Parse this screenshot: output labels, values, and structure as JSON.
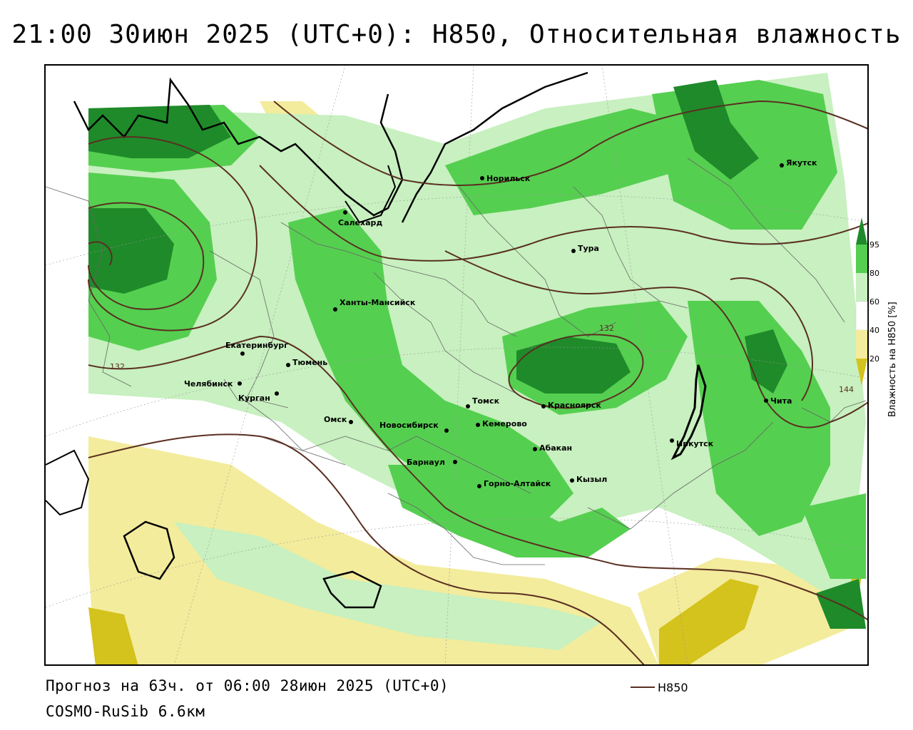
{
  "title": "21:00 30июн 2025 (UTC+0): H850, Относительная влажность",
  "footer": {
    "forecast": "Прогноз на 63ч. от 06:00 28июн 2025 (UTC+0)",
    "model": "COSMO-RuSib 6.6км",
    "line_legend_label": "H850"
  },
  "colorbar": {
    "title": "Влажность на H850 [%]",
    "ticks": [
      "20",
      "40",
      "60",
      "80",
      "95"
    ],
    "colors": {
      "lt20": "#d4c21d",
      "c20_40": "#f3ec9c",
      "c40_60": "#ffffff",
      "c60_80": "#c8f0c0",
      "c80_95": "#55cf50",
      "gt95": "#1f8a2a"
    }
  },
  "contour_labels": [
    "132",
    "132",
    "144"
  ],
  "cities": [
    {
      "name": "Якутск"
    },
    {
      "name": "Норильск"
    },
    {
      "name": "Салехард"
    },
    {
      "name": "Тура"
    },
    {
      "name": "Ханты-Мансийск"
    },
    {
      "name": "Екатеринбург"
    },
    {
      "name": "Тюмень"
    },
    {
      "name": "Челябинск"
    },
    {
      "name": "Курган"
    },
    {
      "name": "Омск"
    },
    {
      "name": "Томск"
    },
    {
      "name": "Новосибирск"
    },
    {
      "name": "Кемерово"
    },
    {
      "name": "Красноярск"
    },
    {
      "name": "Барнаул"
    },
    {
      "name": "Абакан"
    },
    {
      "name": "Иркутск"
    },
    {
      "name": "Чита"
    },
    {
      "name": "Горно-Алтайск"
    },
    {
      "name": "Кызыл"
    }
  ]
}
